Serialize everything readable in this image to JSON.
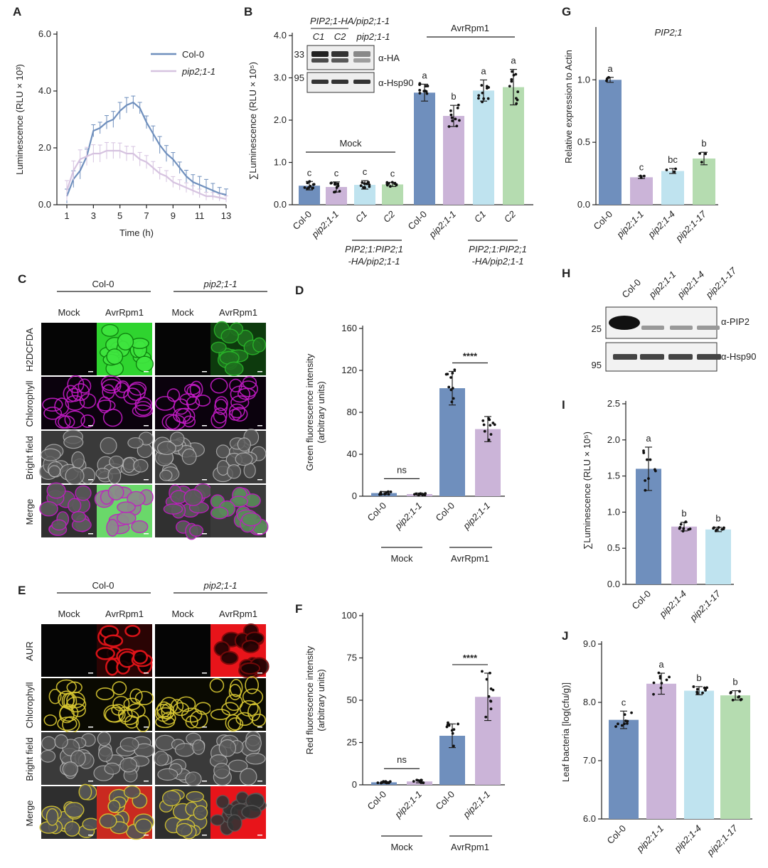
{
  "colors": {
    "col0": "#6f8fbd",
    "pip": "#cbb4d8",
    "c1": "#bfe3ef",
    "c2": "#b5dcb0",
    "pip_line": "#d6c3e0",
    "green": "#2fd42f",
    "magenta": "#c21bc4",
    "red": "#e8141a",
    "yellow": "#d8c832"
  },
  "labels": {
    "A": "A",
    "B": "B",
    "C": "C",
    "D": "D",
    "E": "E",
    "F": "F",
    "G": "G",
    "H": "H",
    "I": "I",
    "J": "J"
  },
  "panelA": {
    "ylabel": "Luminescence (RLU × 10³)",
    "xlabel": "Time (h)",
    "yticks": [
      "0.0",
      "2.0",
      "4.0",
      "6.0"
    ],
    "xticks": [
      "1",
      "3",
      "5",
      "7",
      "9",
      "11",
      "13"
    ],
    "legend": [
      "Col-0",
      "pip2;1-1"
    ]
  },
  "panelB": {
    "ylabel": "∑Luminescence (RLU × 10⁵)",
    "yticks": [
      "0.0",
      "1.0",
      "2.0",
      "3.0",
      "4.0"
    ],
    "xticks": [
      "Col-0",
      "pip2;1-1",
      "C1",
      "C2",
      "Col-0",
      "pip2;1-1",
      "C1",
      "C2"
    ],
    "sig": [
      "c",
      "c",
      "c",
      "c",
      "a",
      "b",
      "a",
      "a"
    ],
    "mock": "Mock",
    "avr": "AvrRpm1",
    "group_label_1": "PIP2;1:PIP2;1",
    "group_label_2": "-HA/pip2;1-1",
    "inset_title": "PIP2;1-HA/pip2;1-1",
    "inset_lanes": [
      "C1",
      "C2",
      "pip2;1-1"
    ],
    "inset_mw": [
      "33",
      "95"
    ],
    "inset_ab": [
      "α-HA",
      "α-Hsp90"
    ]
  },
  "panelC": {
    "col0": "Col-0",
    "pip": "pip2;1-1",
    "cols": [
      "Mock",
      "AvrRpm1",
      "Mock",
      "AvrRpm1"
    ],
    "rows": [
      "H2DCFDA",
      "Chlorophyll",
      "Bright  field",
      "Merge"
    ]
  },
  "panelD": {
    "ylabel_1": "Green fluorescence intensity",
    "ylabel_2": "(arbitrary units)",
    "yticks": [
      "0",
      "40",
      "80",
      "120",
      "160"
    ],
    "xticks": [
      "Col-0",
      "pip2;1-1",
      "Col-0",
      "pip2;1-1"
    ],
    "sig_ns": "ns",
    "sig_star": "****",
    "mock": "Mock",
    "avr": "AvrRpm1"
  },
  "panelE": {
    "col0": "Col-0",
    "pip": "pip2;1-1",
    "cols": [
      "Mock",
      "AvrRpm1",
      "Mock",
      "AvrRpm1"
    ],
    "rows": [
      "AUR",
      "Chlorophyll",
      "Bright  field",
      "Merge"
    ]
  },
  "panelF": {
    "ylabel_1": "Red fluorescence intensity",
    "ylabel_2": "(arbitrary units)",
    "yticks": [
      "0",
      "25",
      "50",
      "75",
      "100"
    ],
    "xticks": [
      "Col-0",
      "pip2;1-1",
      "Col-0",
      "pip2;1-1"
    ],
    "sig_ns": "ns",
    "sig_star": "****",
    "mock": "Mock",
    "avr": "AvrRpm1"
  },
  "panelG": {
    "title": "PIP2;1",
    "ylabel": "Relative expression to Actin",
    "yticks": [
      "0.0",
      "0.5",
      "1.0"
    ],
    "xticks": [
      "Col-0",
      "pip2;1-1",
      "pip2;1-4",
      "pip2;1-17"
    ],
    "sig": [
      "a",
      "c",
      "bc",
      "b"
    ]
  },
  "panelH": {
    "lanes": [
      "Col-0",
      "pip2;1-1",
      "pip2;1-4",
      "pip2;1-17"
    ],
    "mw": [
      "25",
      "95"
    ],
    "ab": [
      "α-PIP2",
      "α-Hsp90"
    ]
  },
  "panelI": {
    "ylabel": "∑Luminescence (RLU × 10⁵)",
    "yticks": [
      "0.0",
      "0.5",
      "1.0",
      "1.5",
      "2.0",
      "2.5"
    ],
    "xticks": [
      "Col-0",
      "pip2;1-4",
      "pip2;1-17"
    ],
    "sig": [
      "a",
      "b",
      "b"
    ]
  },
  "panelJ": {
    "ylabel": "Leaf bacteria [log(cfu/g)]",
    "yticks": [
      "6.0",
      "7.0",
      "8.0",
      "9.0"
    ],
    "xticks": [
      "Col-0",
      "pip2;1-1",
      "pip2;1-4",
      "pip2;1-17"
    ],
    "sig": [
      "c",
      "a",
      "b",
      "b"
    ]
  },
  "chart_data": [
    {
      "panel": "A",
      "type": "line",
      "xlabel": "Time (h)",
      "ylabel": "Luminescence (RLU × 10³)",
      "xlim": [
        1,
        13
      ],
      "ylim": [
        0,
        6
      ],
      "series": [
        {
          "name": "Col-0",
          "x": [
            1,
            1.5,
            2,
            2.5,
            3,
            3.5,
            4,
            4.5,
            5,
            5.5,
            6,
            6.5,
            7,
            7.5,
            8,
            8.5,
            9,
            9.5,
            10,
            10.5,
            11,
            11.5,
            12,
            12.5,
            13
          ],
          "y": [
            0.3,
            0.9,
            1.2,
            1.7,
            2.6,
            2.7,
            2.9,
            3.0,
            3.3,
            3.5,
            3.6,
            3.4,
            2.9,
            2.5,
            2.1,
            1.8,
            1.6,
            1.3,
            1.0,
            0.8,
            0.7,
            0.6,
            0.5,
            0.4,
            0.35
          ]
        },
        {
          "name": "pip2;1-1",
          "x": [
            1,
            1.5,
            2,
            2.5,
            3,
            3.5,
            4,
            4.5,
            5,
            5.5,
            6,
            6.5,
            7,
            7.5,
            8,
            8.5,
            9,
            9.5,
            10,
            10.5,
            11,
            11.5,
            12,
            12.5,
            13
          ],
          "y": [
            0.5,
            1.2,
            1.6,
            1.7,
            1.8,
            1.8,
            1.9,
            1.9,
            1.9,
            1.8,
            1.8,
            1.6,
            1.5,
            1.3,
            1.1,
            1.0,
            0.8,
            0.7,
            0.6,
            0.5,
            0.4,
            0.3,
            0.3,
            0.25,
            0.2
          ]
        }
      ]
    },
    {
      "panel": "B",
      "type": "bar",
      "ylabel": "∑Luminescence (RLU × 10⁵)",
      "ylim": [
        0,
        4
      ],
      "categories": [
        "Col-0",
        "pip2;1-1",
        "C1",
        "C2",
        "Col-0",
        "pip2;1-1",
        "C1",
        "C2"
      ],
      "groups": [
        "Mock",
        "Mock",
        "Mock",
        "Mock",
        "AvrRpm1",
        "AvrRpm1",
        "AvrRpm1",
        "AvrRpm1"
      ],
      "values": [
        0.45,
        0.42,
        0.47,
        0.48,
        2.65,
        2.1,
        2.7,
        2.78
      ],
      "errors": [
        0.1,
        0.12,
        0.1,
        0.05,
        0.2,
        0.25,
        0.25,
        0.42
      ]
    },
    {
      "panel": "D",
      "type": "bar",
      "ylabel": "Green fluorescence intensity (arbitrary units)",
      "ylim": [
        0,
        160
      ],
      "categories": [
        "Col-0",
        "pip2;1-1",
        "Col-0",
        "pip2;1-1"
      ],
      "groups": [
        "Mock",
        "Mock",
        "AvrRpm1",
        "AvrRpm1"
      ],
      "values": [
        3,
        2,
        103,
        64
      ],
      "errors": [
        1.5,
        1,
        16,
        12
      ]
    },
    {
      "panel": "F",
      "type": "bar",
      "ylabel": "Red fluorescence intensity (arbitrary units)",
      "ylim": [
        0,
        100
      ],
      "categories": [
        "Col-0",
        "pip2;1-1",
        "Col-0",
        "pip2;1-1"
      ],
      "groups": [
        "Mock",
        "Mock",
        "AvrRpm1",
        "AvrRpm1"
      ],
      "values": [
        1.5,
        2,
        29,
        52
      ],
      "errors": [
        0.5,
        0.8,
        7,
        14
      ]
    },
    {
      "panel": "G",
      "type": "bar",
      "title": "PIP2;1",
      "ylabel": "Relative expression to Actin",
      "ylim": [
        0,
        1.4
      ],
      "categories": [
        "Col-0",
        "pip2;1-1",
        "pip2;1-4",
        "pip2;1-17"
      ],
      "values": [
        1.0,
        0.22,
        0.27,
        0.37
      ],
      "errors": [
        0.02,
        0.01,
        0.02,
        0.05
      ]
    },
    {
      "panel": "I",
      "type": "bar",
      "ylabel": "∑Luminescence (RLU × 10⁵)",
      "ylim": [
        0,
        2.5
      ],
      "categories": [
        "Col-0",
        "pip2;1-4",
        "pip2;1-17"
      ],
      "values": [
        1.6,
        0.8,
        0.76
      ],
      "errors": [
        0.3,
        0.06,
        0.03
      ]
    },
    {
      "panel": "J",
      "type": "bar",
      "ylabel": "Leaf bacteria [log(cfu/g)]",
      "ylim": [
        6.0,
        9.0
      ],
      "categories": [
        "Col-0",
        "pip2;1-1",
        "pip2;1-4",
        "pip2;1-17"
      ],
      "values": [
        7.7,
        8.32,
        8.2,
        8.12
      ],
      "errors": [
        0.15,
        0.18,
        0.07,
        0.08
      ]
    }
  ]
}
